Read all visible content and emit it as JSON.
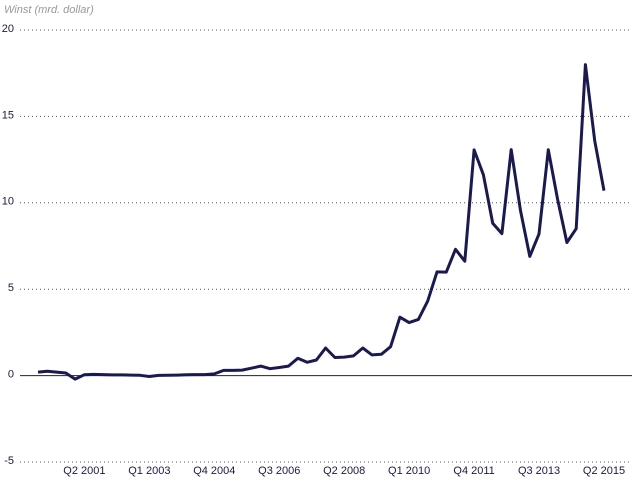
{
  "chart_data": {
    "type": "line",
    "y_label": "Winst (mrd. dollar)",
    "categories": [
      null,
      null,
      null,
      null,
      null,
      "Q2 2001",
      null,
      null,
      null,
      null,
      null,
      null,
      "Q1 2003",
      null,
      null,
      null,
      null,
      null,
      null,
      "Q4 2004",
      null,
      null,
      null,
      null,
      null,
      null,
      "Q3 2006",
      null,
      null,
      null,
      null,
      null,
      null,
      "Q2 2008",
      null,
      null,
      null,
      null,
      null,
      null,
      "Q1 2010",
      null,
      null,
      null,
      null,
      null,
      null,
      "Q4 2011",
      null,
      null,
      null,
      null,
      null,
      null,
      "Q3 2013",
      null,
      null,
      null,
      null,
      null,
      null,
      "Q2 2015"
    ],
    "series": [
      {
        "name": "Winst",
        "color": "#1b1a4f",
        "values": [
          0.2,
          0.25,
          0.2,
          0.15,
          -0.2,
          0.05,
          0.07,
          0.06,
          0.04,
          0.04,
          0.03,
          0.02,
          -0.05,
          0.01,
          0.02,
          0.03,
          0.05,
          0.06,
          0.06,
          0.1,
          0.3,
          0.3,
          0.32,
          0.43,
          0.55,
          0.4,
          0.47,
          0.55,
          1.0,
          0.77,
          0.9,
          1.6,
          1.05,
          1.07,
          1.14,
          1.6,
          1.2,
          1.23,
          1.67,
          3.38,
          3.07,
          3.25,
          4.31,
          6.0,
          5.99,
          7.31,
          6.62,
          13.06,
          11.62,
          8.82,
          8.22,
          13.08,
          9.55,
          6.9,
          8.2,
          13.07,
          10.2,
          7.7,
          8.5,
          18.0,
          13.6,
          10.7
        ]
      }
    ],
    "ylim": [
      -5,
      20
    ],
    "yticks": [
      -5,
      0,
      5,
      10,
      15,
      20
    ],
    "grid": true
  }
}
